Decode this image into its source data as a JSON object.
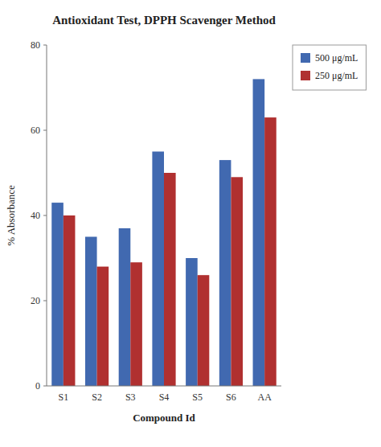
{
  "chart_data": {
    "type": "bar",
    "title": "Antioxidant Test, DPPH Scavenger Method",
    "xlabel": "Compound Id",
    "ylabel": "% Absorbance",
    "categories": [
      "S1",
      "S2",
      "S3",
      "S4",
      "S5",
      "S6",
      "AA"
    ],
    "series": [
      {
        "name": "500 μg/mL",
        "color": "#4169B0",
        "values": [
          43,
          35,
          37,
          55,
          30,
          53,
          72
        ]
      },
      {
        "name": "250 μg/mL",
        "color": "#B03030",
        "values": [
          40,
          28,
          29,
          50,
          26,
          49,
          63
        ]
      }
    ],
    "ylim": [
      0,
      80
    ],
    "yticks": [
      0,
      20,
      40,
      60,
      80
    ],
    "grid": false,
    "legend": "right"
  }
}
